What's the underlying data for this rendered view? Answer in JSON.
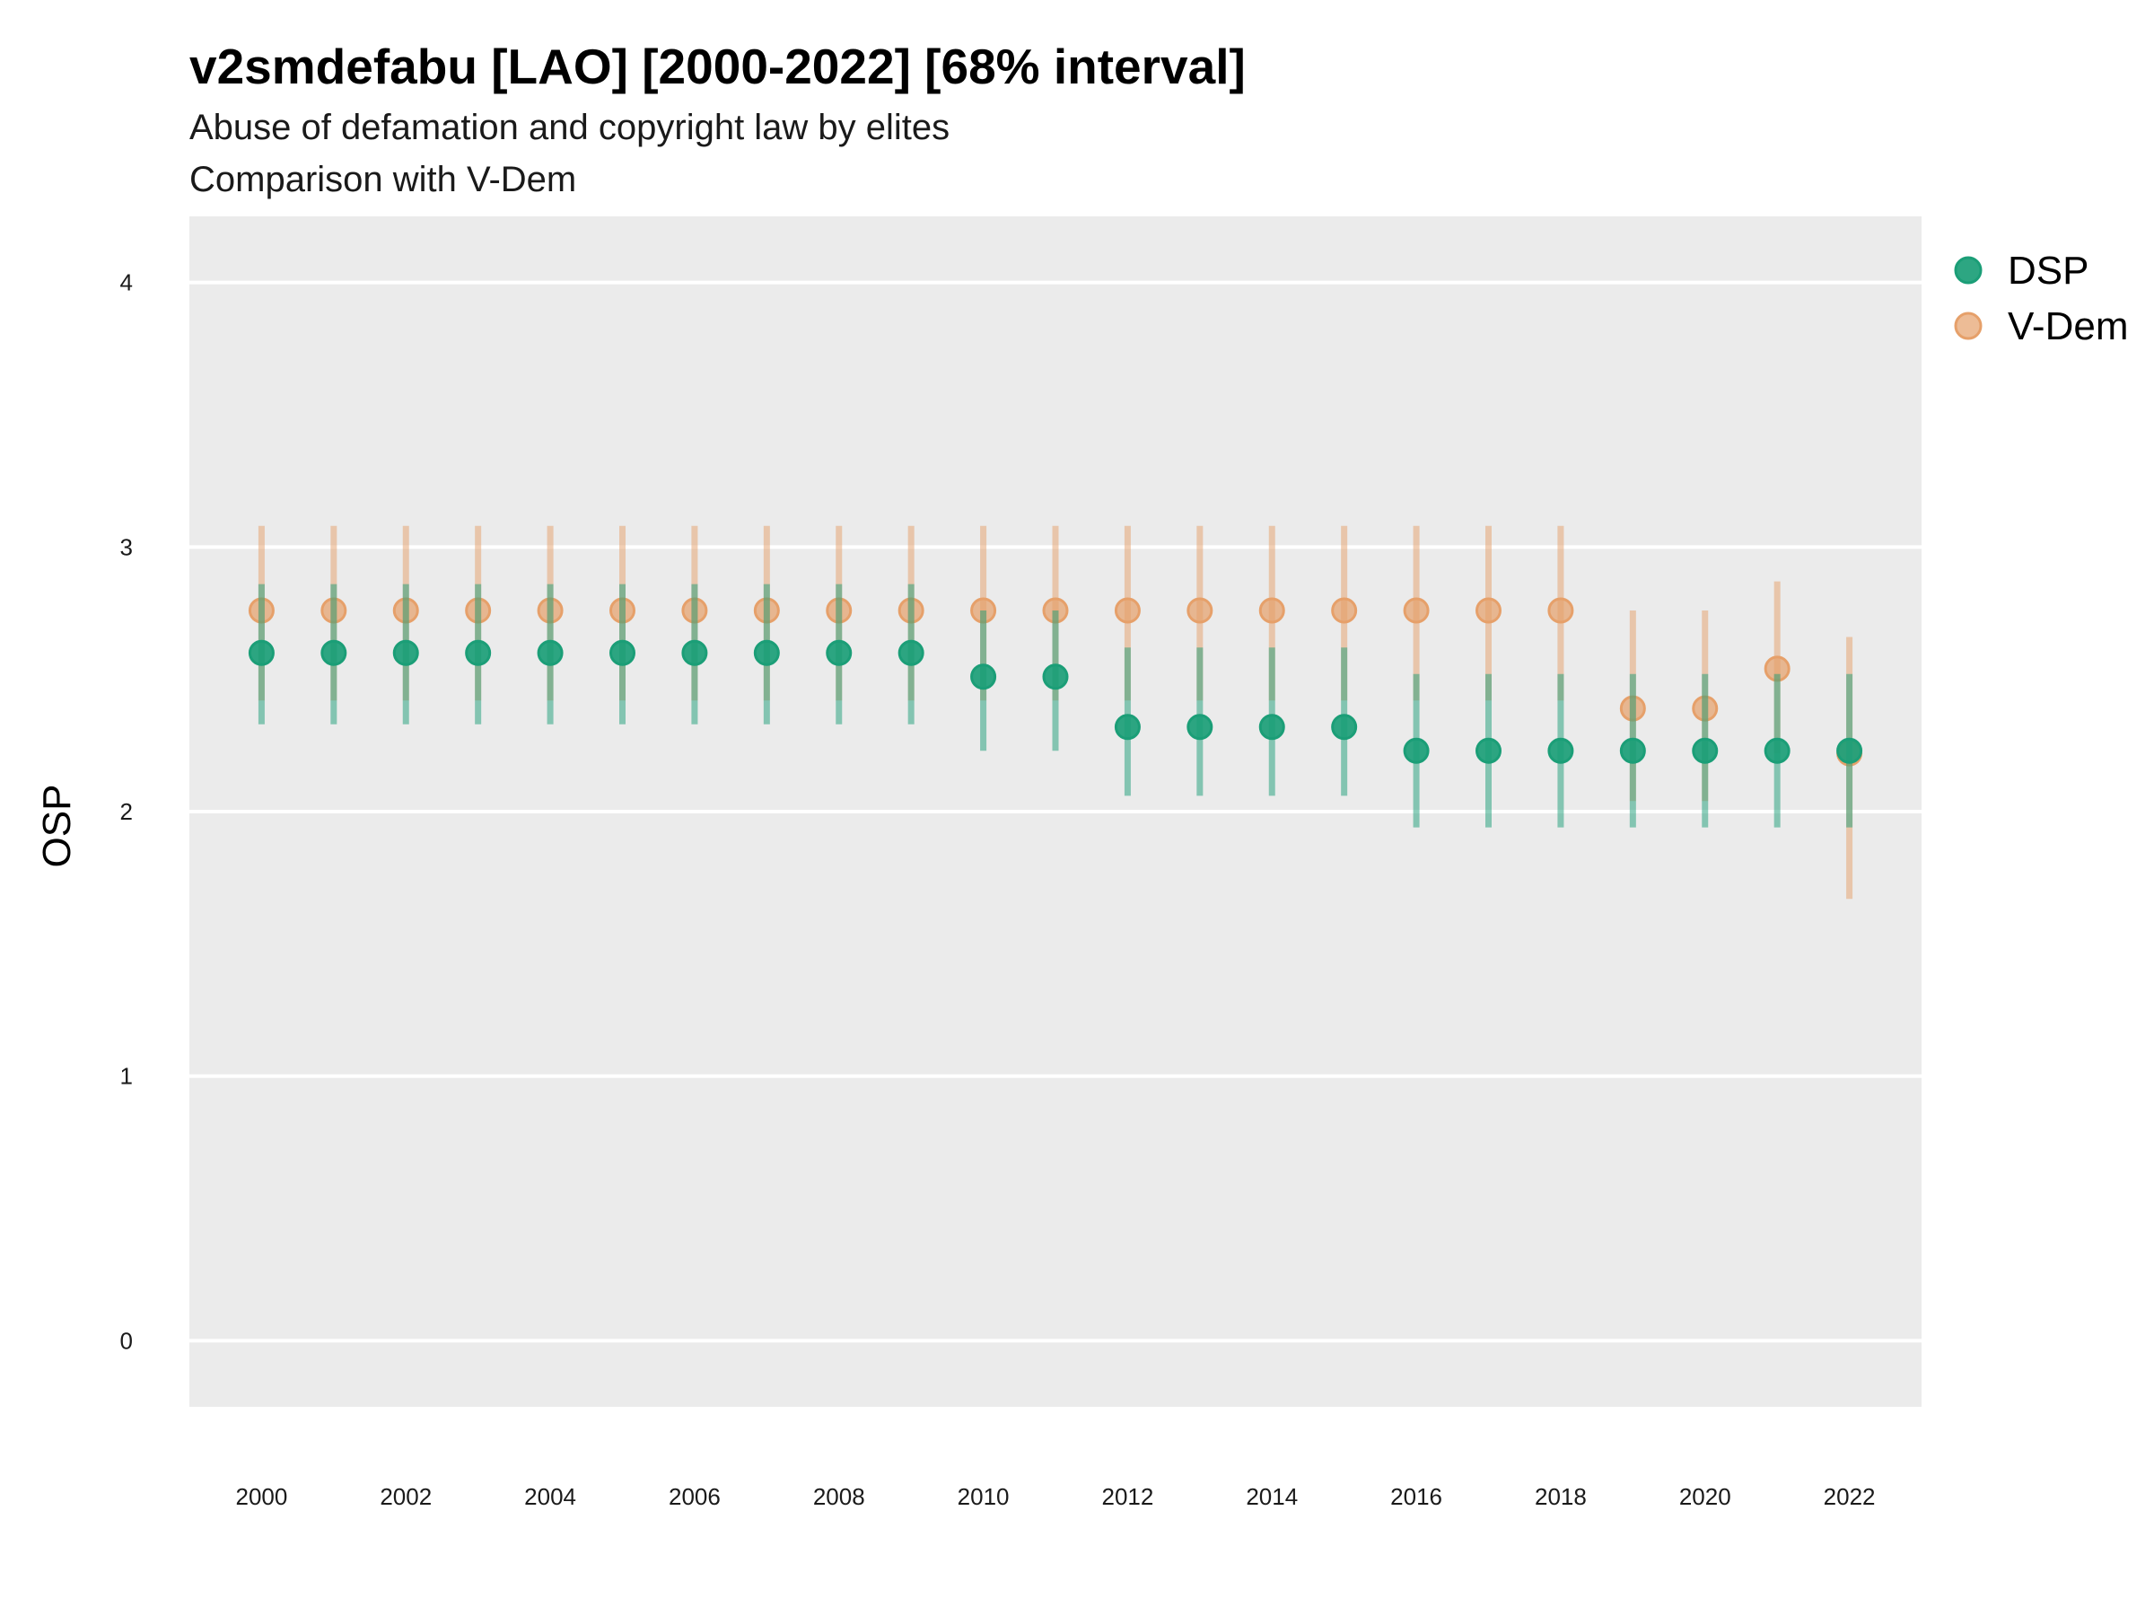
{
  "chart_data": {
    "type": "scatter",
    "title": "v2smdefabu [LAO] [2000-2022] [68% interval]",
    "subtitle_line1": "Abuse of defamation and copyright law by elites",
    "subtitle_line2": "Comparison with V-Dem",
    "ylabel": "OSP",
    "xlabel": "",
    "ylim": [
      -0.25,
      4.25
    ],
    "xlim": [
      1999,
      2023
    ],
    "y_ticks": [
      0,
      1,
      2,
      3,
      4
    ],
    "x_ticks": [
      2000,
      2002,
      2004,
      2006,
      2008,
      2010,
      2012,
      2014,
      2016,
      2018,
      2020,
      2022
    ],
    "grid": true,
    "legend_position": "right-top",
    "x": [
      2000,
      2001,
      2002,
      2003,
      2004,
      2005,
      2006,
      2007,
      2008,
      2009,
      2010,
      2011,
      2012,
      2013,
      2014,
      2015,
      2016,
      2017,
      2018,
      2019,
      2020,
      2021,
      2022
    ],
    "series": [
      {
        "name": "V-Dem",
        "color": "#e6a06a",
        "values": [
          2.76,
          2.76,
          2.76,
          2.76,
          2.76,
          2.76,
          2.76,
          2.76,
          2.76,
          2.76,
          2.76,
          2.76,
          2.76,
          2.76,
          2.76,
          2.76,
          2.76,
          2.76,
          2.76,
          2.39,
          2.39,
          2.54,
          2.22
        ],
        "lower": [
          2.42,
          2.42,
          2.42,
          2.42,
          2.42,
          2.42,
          2.42,
          2.42,
          2.42,
          2.42,
          2.42,
          2.42,
          2.42,
          2.42,
          2.42,
          2.42,
          2.42,
          2.42,
          2.42,
          2.04,
          2.04,
          2.22,
          1.67
        ],
        "upper": [
          3.08,
          3.08,
          3.08,
          3.08,
          3.08,
          3.08,
          3.08,
          3.08,
          3.08,
          3.08,
          3.08,
          3.08,
          3.08,
          3.08,
          3.08,
          3.08,
          3.08,
          3.08,
          3.08,
          2.76,
          2.76,
          2.87,
          2.66
        ]
      },
      {
        "name": "DSP",
        "color": "#1b9e77",
        "values": [
          2.6,
          2.6,
          2.6,
          2.6,
          2.6,
          2.6,
          2.6,
          2.6,
          2.6,
          2.6,
          2.51,
          2.51,
          2.32,
          2.32,
          2.32,
          2.32,
          2.23,
          2.23,
          2.23,
          2.23,
          2.23,
          2.23,
          2.23
        ],
        "lower": [
          2.33,
          2.33,
          2.33,
          2.33,
          2.33,
          2.33,
          2.33,
          2.33,
          2.33,
          2.33,
          2.23,
          2.23,
          2.06,
          2.06,
          2.06,
          2.06,
          1.94,
          1.94,
          1.94,
          1.94,
          1.94,
          1.94,
          1.94
        ],
        "upper": [
          2.86,
          2.86,
          2.86,
          2.86,
          2.86,
          2.86,
          2.86,
          2.86,
          2.86,
          2.86,
          2.76,
          2.76,
          2.62,
          2.62,
          2.62,
          2.62,
          2.52,
          2.52,
          2.52,
          2.52,
          2.52,
          2.52,
          2.52
        ]
      }
    ],
    "legend_order": [
      "DSP",
      "V-Dem"
    ]
  }
}
